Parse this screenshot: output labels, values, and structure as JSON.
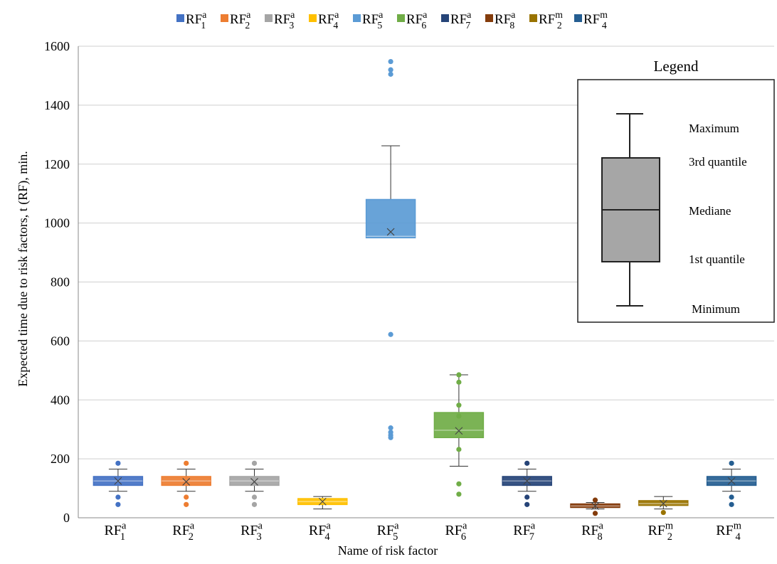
{
  "chart_data": {
    "type": "box",
    "xlabel": "Name of risk factor",
    "ylabel": "Expected time due to risk factors, t (RF), min.",
    "ylim": [
      0,
      1600
    ],
    "yticks": [
      0,
      200,
      400,
      600,
      800,
      1000,
      1200,
      1400,
      1600
    ],
    "grid": "horizontal",
    "legend_position": "top",
    "series": [
      {
        "base": "RF",
        "sub": "1",
        "sup": "a",
        "color": "#4472c4",
        "min": 90,
        "q1": 110,
        "median": 125,
        "q3": 140,
        "max": 165,
        "mean": 125,
        "outliers": [
          185,
          70,
          45
        ]
      },
      {
        "base": "RF",
        "sub": "2",
        "sup": "a",
        "color": "#ed7d31",
        "min": 90,
        "q1": 110,
        "median": 125,
        "q3": 140,
        "max": 165,
        "mean": 122,
        "outliers": [
          185,
          70,
          45
        ]
      },
      {
        "base": "RF",
        "sub": "3",
        "sup": "a",
        "color": "#a5a5a5",
        "min": 90,
        "q1": 110,
        "median": 125,
        "q3": 140,
        "max": 165,
        "mean": 122,
        "outliers": [
          185,
          70,
          45
        ]
      },
      {
        "base": "RF",
        "sub": "4",
        "sup": "a",
        "color": "#ffc000",
        "min": 30,
        "q1": 45,
        "median": 55,
        "q3": 65,
        "max": 72,
        "mean": 55,
        "outliers": []
      },
      {
        "base": "RF",
        "sub": "5",
        "sup": "a",
        "color": "#5b9bd5",
        "min": 950,
        "q1": 950,
        "median": 955,
        "q3": 1080,
        "max": 1262,
        "mean": 970,
        "outliers": [
          1548,
          1520,
          1505,
          622,
          305,
          290,
          280,
          272
        ]
      },
      {
        "base": "RF",
        "sub": "6",
        "sup": "a",
        "color": "#70ad47",
        "min": 175,
        "q1": 272,
        "median": 297,
        "q3": 357,
        "max": 485,
        "mean": 295,
        "outliers": [
          485,
          460,
          382,
          345,
          232,
          115,
          80
        ]
      },
      {
        "base": "RF",
        "sub": "7",
        "sup": "a",
        "color": "#264478",
        "min": 90,
        "q1": 110,
        "median": 125,
        "q3": 140,
        "max": 165,
        "mean": 125,
        "outliers": [
          185,
          70,
          45
        ]
      },
      {
        "base": "RF",
        "sub": "8",
        "sup": "a",
        "color": "#843c0c",
        "min": 30,
        "q1": 35,
        "median": 40,
        "q3": 47,
        "max": 52,
        "mean": 40,
        "outliers": [
          60,
          15
        ]
      },
      {
        "base": "RF",
        "sub": "2",
        "sup": "m",
        "color": "#997300",
        "min": 30,
        "q1": 42,
        "median": 48,
        "q3": 58,
        "max": 72,
        "mean": 48,
        "outliers": [
          18
        ]
      },
      {
        "base": "RF",
        "sub": "4",
        "sup": "m",
        "color": "#255e91",
        "min": 90,
        "q1": 110,
        "median": 125,
        "q3": 140,
        "max": 165,
        "mean": 125,
        "outliers": [
          185,
          70,
          45
        ]
      }
    ],
    "legend_box": {
      "title": "Legend",
      "labels": [
        "Maximum",
        "3rd quantile",
        "Mediane",
        "1st quantile",
        "Minimum"
      ]
    }
  }
}
